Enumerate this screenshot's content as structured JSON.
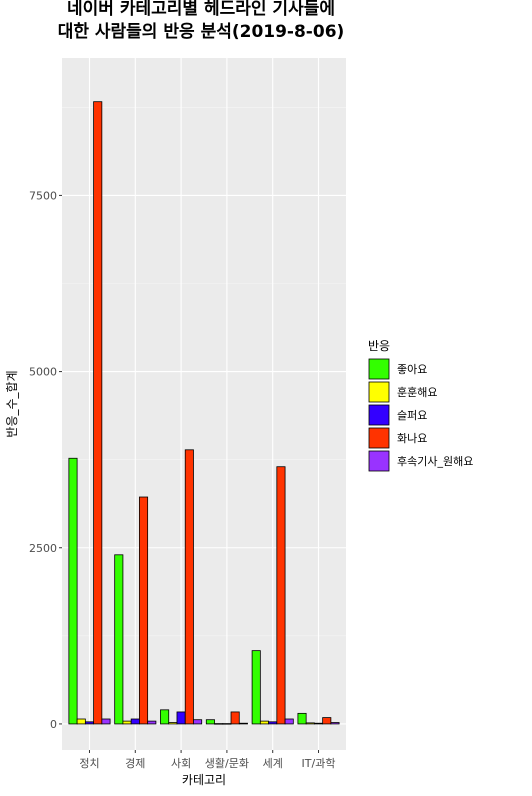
{
  "chart_data": {
    "type": "bar",
    "title": [
      "네이버 카테고리별 헤드라인 기사들에",
      "대한 사람들의 반응 분석(2019-8-06)"
    ],
    "xlabel": "카테고리",
    "ylabel": "반응_수_합계",
    "categories": [
      "정치",
      "경제",
      "사회",
      "생활/문화",
      "세계",
      "IT/과학"
    ],
    "ylim": [
      -370,
      9450
    ],
    "yticks": [
      0,
      2500,
      5000,
      7500
    ],
    "grid": true,
    "legend": {
      "title": "반응",
      "placement": "right"
    },
    "series": [
      {
        "name": "좋아요",
        "color": "#33ff00",
        "values": [
          3770,
          2400,
          200,
          60,
          1040,
          150
        ]
      },
      {
        "name": "훈훈해요",
        "color": "#ffff00",
        "values": [
          70,
          40,
          20,
          5,
          40,
          15
        ]
      },
      {
        "name": "슬퍼요",
        "color": "#3300ff",
        "values": [
          30,
          70,
          170,
          5,
          30,
          10
        ]
      },
      {
        "name": "화나요",
        "color": "#ff3300",
        "values": [
          8830,
          3220,
          3890,
          170,
          3650,
          90
        ]
      },
      {
        "name": "후속기사_원해요",
        "color": "#9933ff",
        "values": [
          70,
          40,
          60,
          10,
          70,
          20
        ]
      }
    ]
  }
}
